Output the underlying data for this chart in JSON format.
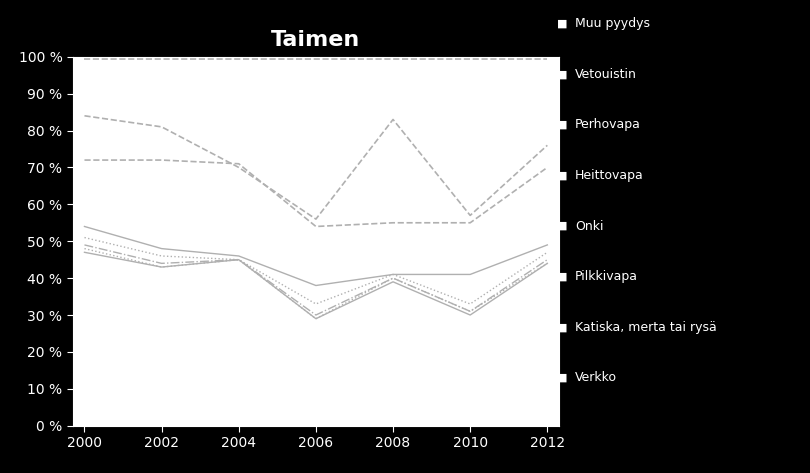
{
  "title": "Taimen",
  "years": [
    2000,
    2002,
    2004,
    2006,
    2008,
    2010,
    2012
  ],
  "series": {
    "Muu pyydys": [
      0.995,
      0.995,
      0.995,
      0.995,
      0.995,
      0.995,
      0.995
    ],
    "Vetouistin": [
      0.84,
      0.81,
      0.7,
      0.56,
      0.83,
      0.57,
      0.76
    ],
    "Perhovapa": [
      0.72,
      0.72,
      0.71,
      0.54,
      0.55,
      0.55,
      0.7
    ],
    "Heittovapa": [
      0.54,
      0.48,
      0.46,
      0.38,
      0.41,
      0.41,
      0.49
    ],
    "Onki": [
      0.51,
      0.46,
      0.45,
      0.33,
      0.41,
      0.33,
      0.47
    ],
    "Pilkkivapa": [
      0.49,
      0.44,
      0.45,
      0.3,
      0.4,
      0.31,
      0.45
    ],
    "Katiska, merta tai rysä": [
      0.48,
      0.43,
      0.45,
      0.29,
      0.4,
      0.31,
      0.44
    ],
    "Verkko": [
      0.47,
      0.43,
      0.45,
      0.29,
      0.39,
      0.3,
      0.44
    ]
  },
  "line_styles": {
    "Muu pyydys": {
      "color": "#b0b0b0",
      "linestyle": "--",
      "linewidth": 1.2,
      "dashes": [
        6,
        4
      ]
    },
    "Vetouistin": {
      "color": "#b0b0b0",
      "linestyle": "--",
      "linewidth": 1.2,
      "dashes": [
        4,
        3
      ]
    },
    "Perhovapa": {
      "color": "#b0b0b0",
      "linestyle": "--",
      "linewidth": 1.2,
      "dashes": [
        8,
        4
      ]
    },
    "Heittovapa": {
      "color": "#b0b0b0",
      "linestyle": "-",
      "linewidth": 1.0,
      "dashes": []
    },
    "Onki": {
      "color": "#b0b0b0",
      "linestyle": ":",
      "linewidth": 1.0,
      "dashes": []
    },
    "Pilkkivapa": {
      "color": "#b0b0b0",
      "linestyle": "-.",
      "linewidth": 1.0,
      "dashes": []
    },
    "Katiska, merta tai rysä": {
      "color": "#b0b0b0",
      "linestyle": ":",
      "linewidth": 1.0,
      "dashes": []
    },
    "Verkko": {
      "color": "#b0b0b0",
      "linestyle": "-",
      "linewidth": 1.0,
      "dashes": []
    }
  },
  "background_color": "#000000",
  "plot_bg_color": "#ffffff",
  "text_color": "#ffffff",
  "ylim": [
    0,
    1.0
  ],
  "yticks": [
    0.0,
    0.1,
    0.2,
    0.3,
    0.4,
    0.5,
    0.6,
    0.7,
    0.8,
    0.9,
    1.0
  ],
  "ytick_labels": [
    "0 %",
    "10 %",
    "20 %",
    "30 %",
    "40 %",
    "50 %",
    "60 %",
    "70 %",
    "80 %",
    "90 %",
    "100 %"
  ],
  "legend_labels": [
    "Muu pyydys",
    "Vetouistin",
    "Perhovapa",
    "Heittovapa",
    "Onki",
    "Pilkkivapa",
    "Katiska, merta tai rysä",
    "Verkko"
  ]
}
